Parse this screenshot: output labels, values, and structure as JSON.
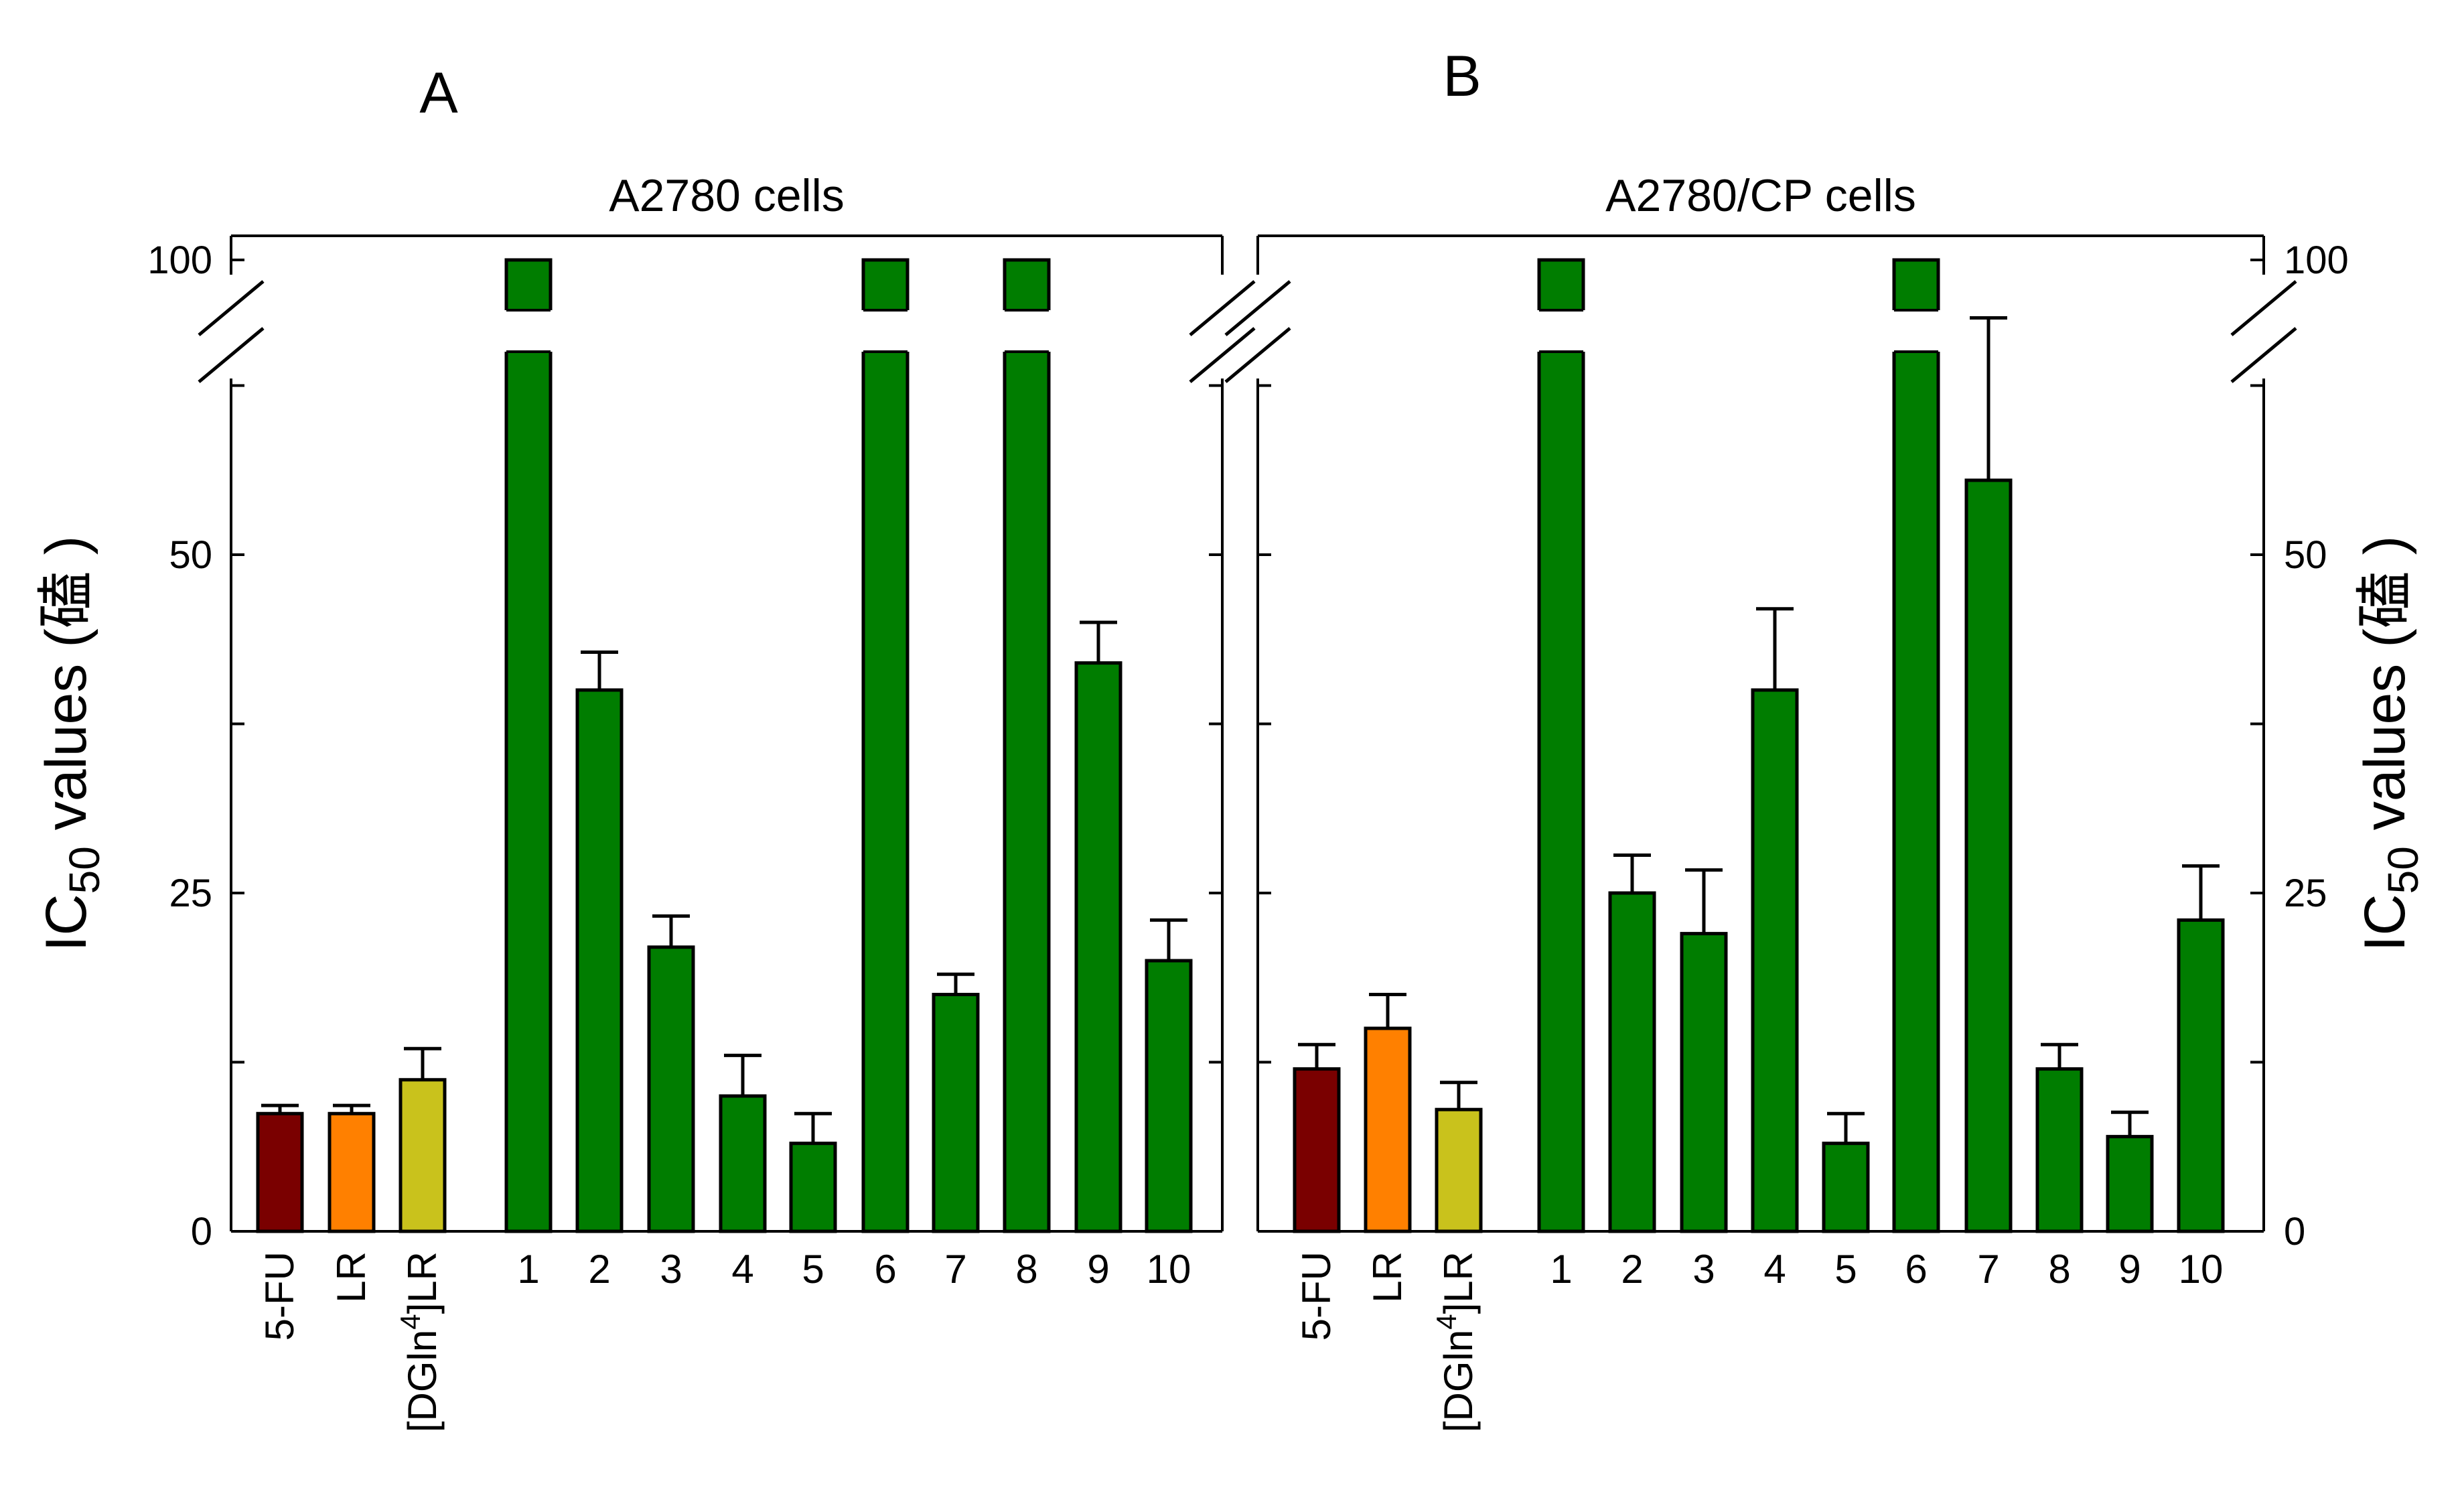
{
  "chart_data": [
    {
      "type": "bar",
      "panel_label": "A",
      "title": "A2780 cells",
      "ylabel": {
        "main": "IC",
        "sub": "50",
        "rest": " values (",
        "unit": "磕",
        "close": " )"
      },
      "yticks": [
        "0",
        "25",
        "50",
        "100"
      ],
      "ylim": [
        0,
        100
      ],
      "axis_break": [
        68,
        100
      ],
      "categories": [
        "5-FU",
        "LR",
        "[DGln4]LR",
        "1",
        "2",
        "3",
        "4",
        "5",
        "6",
        "7",
        "8",
        "9",
        "10"
      ],
      "values": [
        8.7,
        8.7,
        11.2,
        100,
        40,
        21,
        10,
        6.5,
        100,
        17.5,
        100,
        42,
        20
      ],
      "errors": [
        0.6,
        0.6,
        2.3,
        0,
        2.8,
        2.3,
        3,
        2.2,
        0,
        1.5,
        0,
        3,
        3
      ],
      "colors": [
        "#7a0000",
        "#ff8000",
        "#c9c21c",
        "#007d00",
        "#007d00",
        "#007d00",
        "#007d00",
        "#007d00",
        "#007d00",
        "#007d00",
        "#007d00",
        "#007d00",
        "#007d00"
      ]
    },
    {
      "type": "bar",
      "panel_label": "B",
      "title": "A2780/CP cells",
      "ylabel": {
        "main": "IC",
        "sub": "50",
        "rest": " values (",
        "unit": "磕",
        "close": " )"
      },
      "yticks": [
        "0",
        "25",
        "50",
        "100"
      ],
      "ylim": [
        0,
        100
      ],
      "axis_break": [
        68,
        100
      ],
      "categories": [
        "5-FU",
        "LR",
        "[DGln4]LR",
        "1",
        "2",
        "3",
        "4",
        "5",
        "6",
        "7",
        "8",
        "9",
        "10"
      ],
      "values": [
        12,
        15,
        9,
        100,
        25,
        22,
        40,
        6.5,
        100,
        55.5,
        12,
        7,
        23
      ],
      "errors": [
        1.8,
        2.5,
        2,
        0,
        2.8,
        4.7,
        6,
        2.2,
        0,
        12,
        1.8,
        1.8,
        4
      ],
      "colors": [
        "#7a0000",
        "#ff8000",
        "#c9c21c",
        "#007d00",
        "#007d00",
        "#007d00",
        "#007d00",
        "#007d00",
        "#007d00",
        "#007d00",
        "#007d00",
        "#007d00",
        "#007d00"
      ]
    }
  ]
}
